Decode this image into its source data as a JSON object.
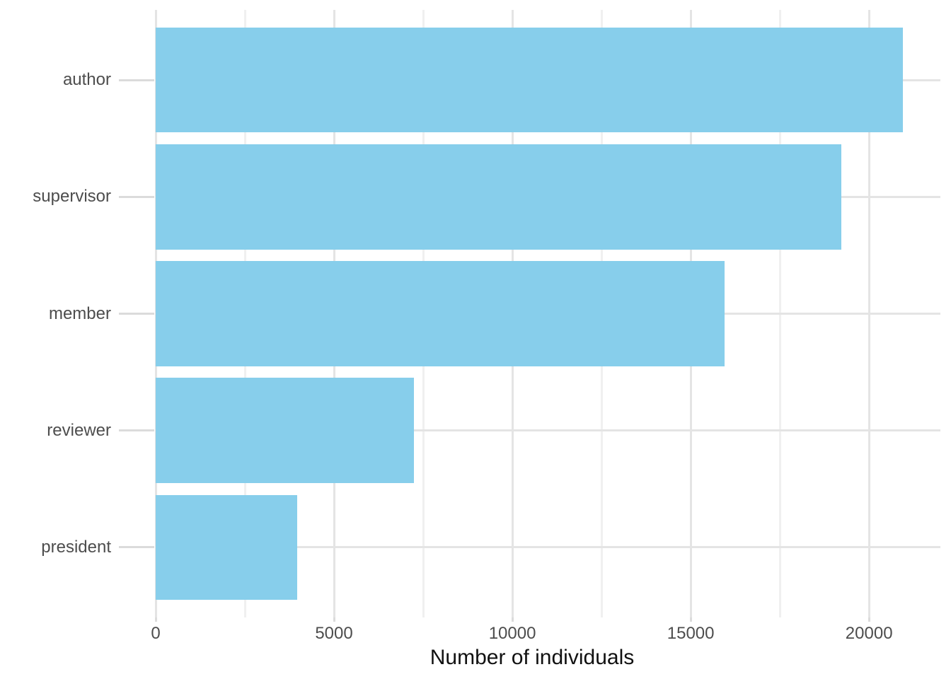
{
  "figure": {
    "background": "#FFFFFF"
  },
  "chart_data": {
    "type": "bar",
    "orientation": "horizontal",
    "title": "",
    "xlabel": "Number of individuals",
    "ylabel": "",
    "categories": [
      "author",
      "supervisor",
      "member",
      "reviewer",
      "president"
    ],
    "values": [
      20950,
      19220,
      15950,
      7250,
      3960
    ],
    "xlim": [
      0,
      22000
    ],
    "x_ticks": [
      0,
      5000,
      10000,
      15000,
      20000
    ],
    "x_tick_labels": [
      "0",
      "5000",
      "10000",
      "15000",
      "20000"
    ],
    "x_minor_ticks": [
      2500,
      7500,
      12500,
      17500
    ],
    "bar_width_fraction": 0.9,
    "grid": "major-and-minor",
    "legend": "none",
    "colors": {
      "bar_fill": "#87CEEB",
      "grid_major": "#E4E4E4",
      "grid_minor": "#F0F0F0",
      "tick_mark": "#DBDBDB",
      "tick_label": "#4D4D4D",
      "axis_title": "#111111",
      "background": "#FFFFFF"
    }
  }
}
